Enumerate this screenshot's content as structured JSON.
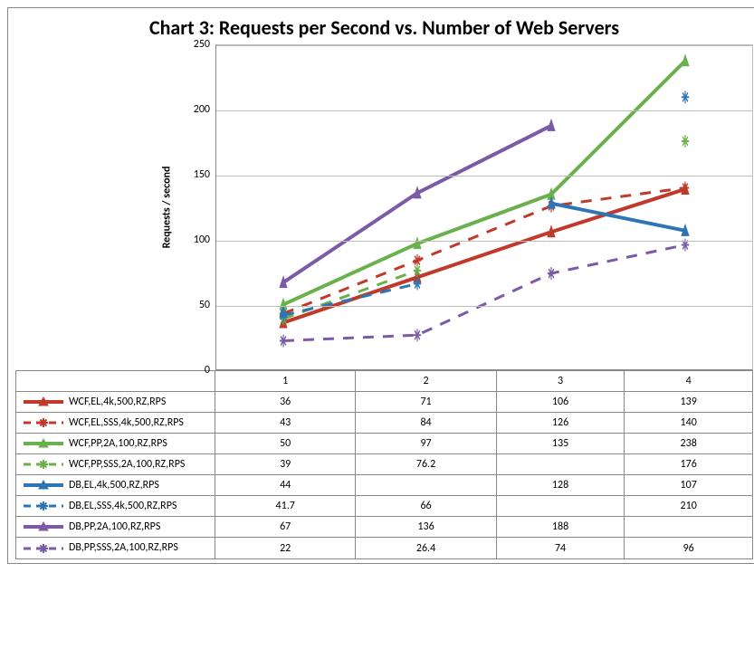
{
  "chart": {
    "title": "Chart 3: Requests per Second vs. Number of Web Servers",
    "ylabel": "Requests / second",
    "title_fontsize": 22,
    "label_fontsize": 12,
    "background_color": "#ffffff",
    "grid_color": "#bbbbbb",
    "border_color": "#888888",
    "ylim": [
      0,
      250
    ],
    "ytick_step": 50,
    "yticks": [
      0,
      50,
      100,
      150,
      200,
      250
    ],
    "categories": [
      "1",
      "2",
      "3",
      "4"
    ],
    "line_width_solid": 4,
    "line_width_dashed": 3,
    "marker_size": 7,
    "series": [
      {
        "name": "WCF,EL,4k,500,RZ,RPS",
        "color": "#c0392b",
        "dash": "solid",
        "marker": "triangle",
        "values": [
          36,
          71,
          106,
          139
        ]
      },
      {
        "name": "WCF,EL,SSS,4k,500,RZ,RPS",
        "color": "#c0392b",
        "dash": "dashed",
        "marker": "asterisk",
        "values": [
          43,
          84,
          126,
          140
        ]
      },
      {
        "name": "WCF,PP,2A,100,RZ,RPS",
        "color": "#6ab04c",
        "dash": "solid",
        "marker": "triangle",
        "values": [
          50,
          97,
          135,
          238
        ]
      },
      {
        "name": "WCF,PP,SSS,2A,100,RZ,RPS",
        "color": "#6ab04c",
        "dash": "dashed",
        "marker": "asterisk",
        "values": [
          39,
          76.2,
          null,
          176
        ]
      },
      {
        "name": "DB,EL,4k,500,RZ,RPS",
        "color": "#2e75b6",
        "dash": "solid",
        "marker": "triangle",
        "values": [
          44,
          null,
          128,
          107
        ]
      },
      {
        "name": "DB,EL,SSS,4k,500,RZ,RPS",
        "color": "#2e75b6",
        "dash": "dashed",
        "marker": "asterisk",
        "values": [
          41.7,
          66,
          null,
          210
        ]
      },
      {
        "name": "DB,PP,2A,100,RZ,RPS",
        "color": "#7b5aa6",
        "dash": "solid",
        "marker": "triangle",
        "values": [
          67,
          136,
          188,
          null
        ]
      },
      {
        "name": "DB,PP,SSS,2A,100,RZ,RPS",
        "color": "#7b5aa6",
        "dash": "dashed",
        "marker": "asterisk",
        "values": [
          22,
          26.4,
          74,
          96
        ]
      }
    ]
  }
}
